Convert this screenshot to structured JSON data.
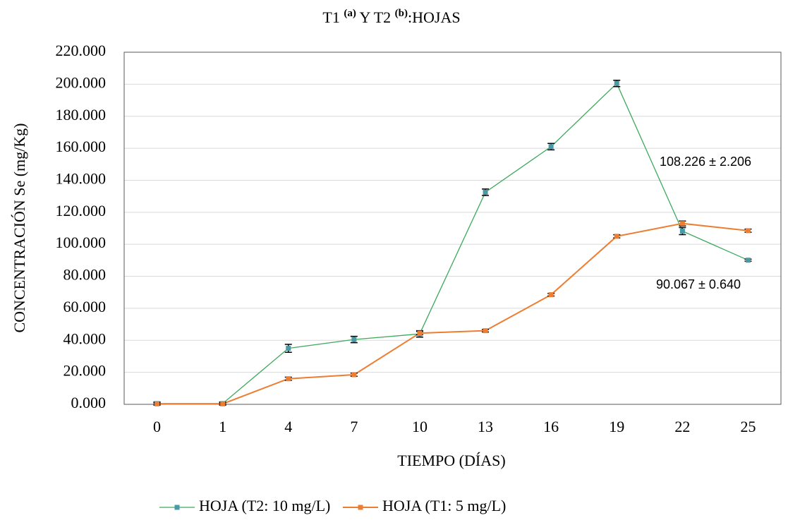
{
  "chart_data": {
    "type": "line",
    "title": [
      "T1 ",
      "(a)",
      " Y T2 ",
      "(b)",
      ":HOJAS"
    ],
    "x_label": "TIEMPO (DÍAS)",
    "y_label": "CONCENTRACIÓN Se (mg/Kg)",
    "categories": [
      "0",
      "1",
      "4",
      "7",
      "10",
      "13",
      "16",
      "19",
      "22",
      "25"
    ],
    "series": [
      {
        "name": "HOJA (T2: 10 mg/L)",
        "color": "#3daa5c",
        "marker_color": "#4a9aa6",
        "values": [
          0.5,
          0.5,
          35,
          40.5,
          44,
          132.5,
          161,
          200.5,
          108.226,
          90.067
        ],
        "errors": [
          1,
          1,
          2.5,
          2,
          2,
          2,
          2,
          2,
          2.206,
          0.64
        ]
      },
      {
        "name": "HOJA (T1: 5 mg/L)",
        "color": "#ed7d31",
        "marker_color": "#ed7d31",
        "values": [
          0.3,
          0.3,
          16,
          18.5,
          44.5,
          46,
          68.5,
          105,
          113,
          108.5
        ],
        "errors": [
          0.5,
          0.5,
          1,
          1,
          1,
          0.8,
          0.8,
          1,
          1.5,
          1
        ]
      }
    ],
    "annotations": [
      "108.226 ± 2.206",
      "90.067 ± 0.640"
    ],
    "ylim": [
      0,
      220
    ],
    "yticks": [
      {
        "value": 0,
        "label": "0.000"
      },
      {
        "value": 20,
        "label": "20.000"
      },
      {
        "value": 40,
        "label": "40.000"
      },
      {
        "value": 60,
        "label": "60.000"
      },
      {
        "value": 80,
        "label": "80.000"
      },
      {
        "value": 100,
        "label": "100.000"
      },
      {
        "value": 120,
        "label": "120.000"
      },
      {
        "value": 140,
        "label": "140.000"
      },
      {
        "value": 160,
        "label": "160.000"
      },
      {
        "value": 180,
        "label": "180.000"
      },
      {
        "value": 200,
        "label": "200.000"
      },
      {
        "value": 220,
        "label": "220.000"
      }
    ],
    "grid": true
  }
}
